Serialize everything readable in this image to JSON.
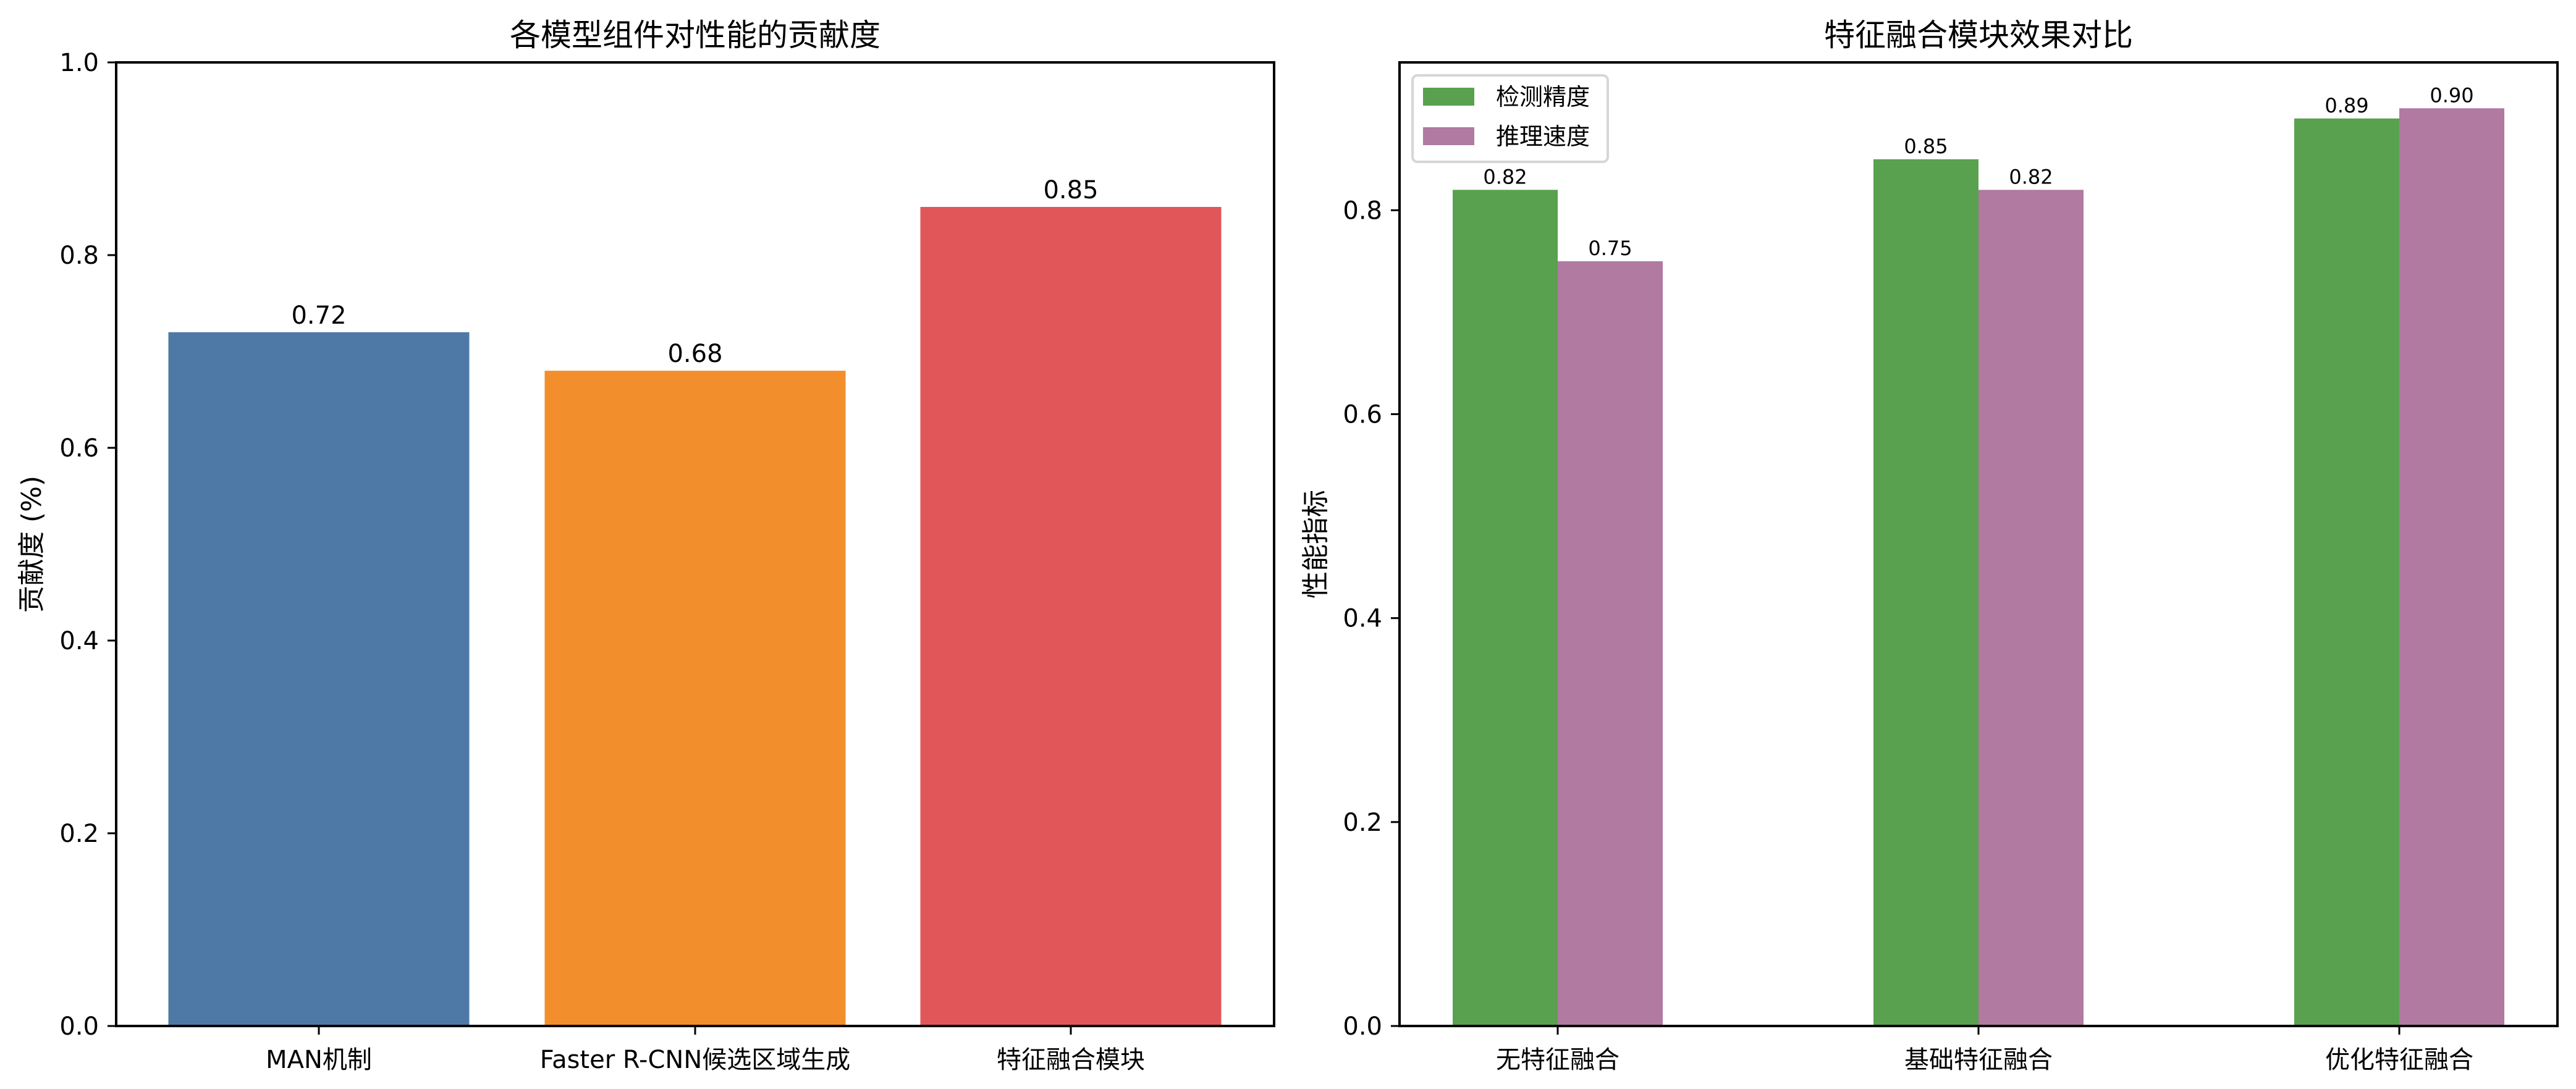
{
  "chart_data": [
    {
      "type": "bar",
      "title": "各模型组件对性能的贡献度",
      "xlabel": "",
      "ylabel": "贡献度 (%)",
      "categories": [
        "MAN机制",
        "Faster R-CNN候选区域生成",
        "特征融合模块"
      ],
      "values": [
        0.72,
        0.68,
        0.85
      ],
      "value_labels": [
        "0.72",
        "0.68",
        "0.85"
      ],
      "colors": [
        "#4e79a7",
        "#f28e2b",
        "#e15759"
      ],
      "ylim": [
        0,
        1.0
      ],
      "yticks": [
        "0.0",
        "0.2",
        "0.4",
        "0.6",
        "0.8",
        "1.0"
      ],
      "grid": false,
      "legend": null
    },
    {
      "type": "bar",
      "title": "特征融合模块效果对比",
      "xlabel": "",
      "ylabel": "性能指标",
      "categories": [
        "无特征融合",
        "基础特征融合",
        "优化特征融合"
      ],
      "series": [
        {
          "name": "检测精度",
          "values": [
            0.82,
            0.85,
            0.89
          ],
          "value_labels": [
            "0.82",
            "0.85",
            "0.89"
          ],
          "color": "#59a14f"
        },
        {
          "name": "推理速度",
          "values": [
            0.75,
            0.82,
            0.9
          ],
          "value_labels": [
            "0.75",
            "0.82",
            "0.90"
          ],
          "color": "#b07aa1"
        }
      ],
      "ylim": [
        0,
        0.945
      ],
      "yticks": [
        "0.0",
        "0.2",
        "0.4",
        "0.6",
        "0.8"
      ],
      "grid": false,
      "legend_position": "upper left"
    }
  ]
}
